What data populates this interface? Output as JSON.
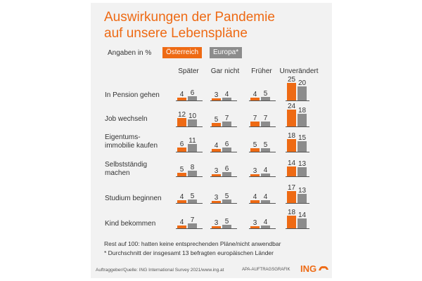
{
  "title_lines": [
    "Auswirkungen der Pandemie",
    "auf unsere Lebenspläne"
  ],
  "legend": {
    "unit_label": "Angaben in %",
    "austria": "Österreich",
    "europe": "Europa*"
  },
  "colors": {
    "austria": "#ee6a14",
    "europe": "#8c8c8c",
    "baseline": "#555555"
  },
  "notes": {
    "rest": "Rest auf 100: hatten keine entsprechenden Pläne/nicht anwendbar",
    "footnote": "* Durchschnitt der insgesamt 13 befragten europäischen Länder"
  },
  "footer": {
    "source": "Auftraggeber/Quelle: ING International Survey 2021/www.ing.at",
    "agency": "APA-AUFTRAGSGRAFIK",
    "logo": "ING"
  },
  "chart_data": {
    "type": "bar",
    "title": "Auswirkungen der Pandemie auf unsere Lebenspläne",
    "unit": "%",
    "columns": [
      "Später",
      "Gar nicht",
      "Früher",
      "Unverändert"
    ],
    "series_names": [
      "Österreich",
      "Europa*"
    ],
    "rows": [
      {
        "label": [
          "In Pension gehen"
        ],
        "values": [
          [
            4,
            6
          ],
          [
            3,
            4
          ],
          [
            4,
            5
          ],
          [
            25,
            20
          ]
        ]
      },
      {
        "label": [
          "Job wechseln"
        ],
        "values": [
          [
            12,
            10
          ],
          [
            5,
            7
          ],
          [
            7,
            7
          ],
          [
            24,
            18
          ]
        ]
      },
      {
        "label": [
          "Eigentums-",
          "immobilie kaufen"
        ],
        "values": [
          [
            6,
            11
          ],
          [
            4,
            6
          ],
          [
            5,
            5
          ],
          [
            18,
            15
          ]
        ]
      },
      {
        "label": [
          "Selbstständig",
          "machen"
        ],
        "values": [
          [
            5,
            8
          ],
          [
            3,
            6
          ],
          [
            3,
            4
          ],
          [
            14,
            13
          ]
        ]
      },
      {
        "label": [
          "Studium beginnen"
        ],
        "values": [
          [
            4,
            5
          ],
          [
            3,
            5
          ],
          [
            4,
            4
          ],
          [
            17,
            13
          ]
        ]
      },
      {
        "label": [
          "Kind bekommen"
        ],
        "values": [
          [
            4,
            7
          ],
          [
            3,
            5
          ],
          [
            3,
            4
          ],
          [
            18,
            14
          ]
        ]
      }
    ]
  }
}
